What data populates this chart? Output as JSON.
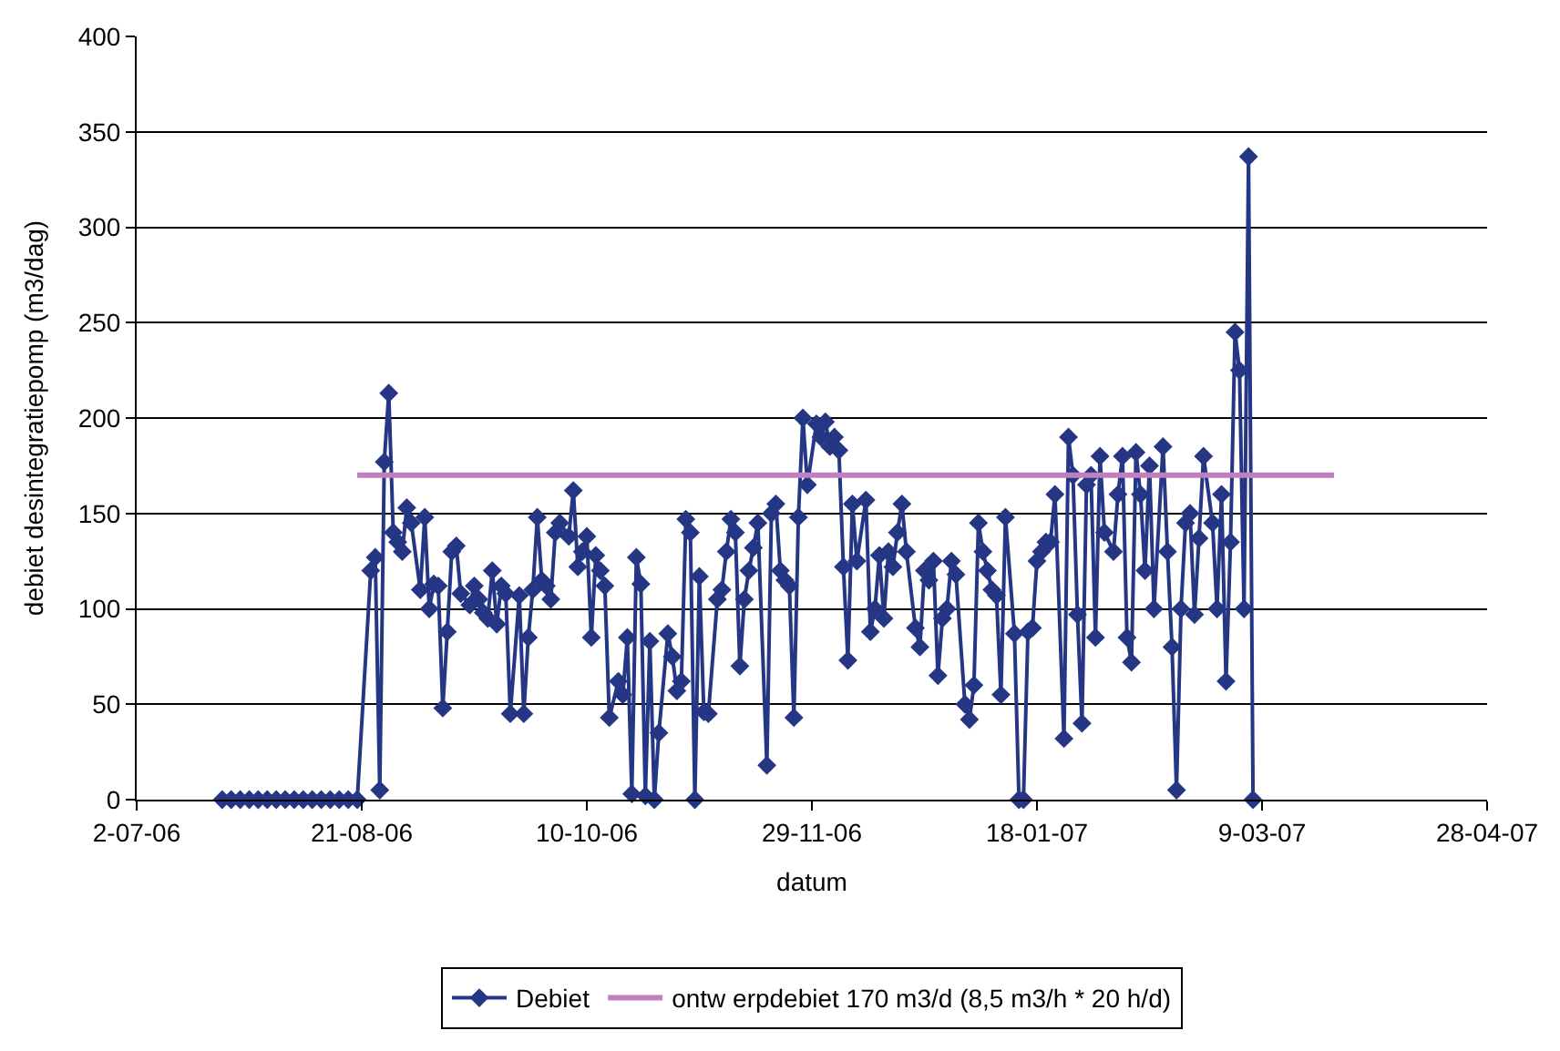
{
  "chart_data": {
    "type": "line",
    "xlabel": "datum",
    "ylabel": "debiet desintegratiepomp (m3/dag)",
    "xlim": [
      "2006-07-02",
      "2007-04-28"
    ],
    "xticks": [
      {
        "value": "2006-07-02",
        "label": "2-07-06"
      },
      {
        "value": "2006-08-21",
        "label": "21-08-06"
      },
      {
        "value": "2006-10-10",
        "label": "10-10-06"
      },
      {
        "value": "2006-11-29",
        "label": "29-11-06"
      },
      {
        "value": "2007-01-18",
        "label": "18-01-07"
      },
      {
        "value": "2007-03-09",
        "label": "9-03-07"
      },
      {
        "value": "2007-04-28",
        "label": "28-04-07"
      }
    ],
    "ylim": [
      0,
      400
    ],
    "yticks": [
      0,
      50,
      100,
      150,
      200,
      250,
      300,
      350,
      400
    ],
    "grid": "y",
    "legend": "bottom",
    "series": [
      {
        "name": "Debiet",
        "color": "#253685",
        "marker": "diamond",
        "line_style": "solid",
        "x": [
          "2006-07-21",
          "2006-07-23",
          "2006-07-25",
          "2006-07-27",
          "2006-07-29",
          "2006-07-31",
          "2006-08-02",
          "2006-08-04",
          "2006-08-06",
          "2006-08-08",
          "2006-08-10",
          "2006-08-12",
          "2006-08-14",
          "2006-08-16",
          "2006-08-18",
          "2006-08-20",
          "2006-08-23",
          "2006-08-24",
          "2006-08-25",
          "2006-08-26",
          "2006-08-27",
          "2006-08-28",
          "2006-08-29",
          "2006-08-30",
          "2006-08-31",
          "2006-09-01",
          "2006-09-03",
          "2006-09-04",
          "2006-09-05",
          "2006-09-06",
          "2006-09-07",
          "2006-09-08",
          "2006-09-09",
          "2006-09-10",
          "2006-09-11",
          "2006-09-12",
          "2006-09-14",
          "2006-09-15",
          "2006-09-16",
          "2006-09-17",
          "2006-09-18",
          "2006-09-19",
          "2006-09-20",
          "2006-09-21",
          "2006-09-22",
          "2006-09-23",
          "2006-09-25",
          "2006-09-26",
          "2006-09-27",
          "2006-09-28",
          "2006-09-29",
          "2006-09-30",
          "2006-10-01",
          "2006-10-02",
          "2006-10-03",
          "2006-10-04",
          "2006-10-06",
          "2006-10-07",
          "2006-10-08",
          "2006-10-09",
          "2006-10-10",
          "2006-10-11",
          "2006-10-12",
          "2006-10-13",
          "2006-10-14",
          "2006-10-15",
          "2006-10-17",
          "2006-10-18",
          "2006-10-19",
          "2006-10-20",
          "2006-10-21",
          "2006-10-22",
          "2006-10-23",
          "2006-10-24",
          "2006-10-25",
          "2006-10-26",
          "2006-10-28",
          "2006-10-29",
          "2006-10-30",
          "2006-10-31",
          "2006-11-01",
          "2006-11-02",
          "2006-11-03",
          "2006-11-04",
          "2006-11-05",
          "2006-11-06",
          "2006-11-08",
          "2006-11-09",
          "2006-11-10",
          "2006-11-11",
          "2006-11-12",
          "2006-11-13",
          "2006-11-14",
          "2006-11-15",
          "2006-11-16",
          "2006-11-17",
          "2006-11-19",
          "2006-11-20",
          "2006-11-21",
          "2006-11-22",
          "2006-11-23",
          "2006-11-24",
          "2006-11-25",
          "2006-11-26",
          "2006-11-27",
          "2006-11-28",
          "2006-11-30",
          "2006-12-01",
          "2006-12-02",
          "2006-12-03",
          "2006-12-04",
          "2006-12-05",
          "2006-12-06",
          "2006-12-07",
          "2006-12-08",
          "2006-12-09",
          "2006-12-11",
          "2006-12-12",
          "2006-12-13",
          "2006-12-14",
          "2006-12-15",
          "2006-12-16",
          "2006-12-17",
          "2006-12-18",
          "2006-12-19",
          "2006-12-20",
          "2006-12-22",
          "2006-12-23",
          "2006-12-24",
          "2006-12-25",
          "2006-12-26",
          "2006-12-27",
          "2006-12-28",
          "2006-12-29",
          "2006-12-30",
          "2006-12-31",
          "2007-01-02",
          "2007-01-03",
          "2007-01-04",
          "2007-01-05",
          "2007-01-06",
          "2007-01-07",
          "2007-01-08",
          "2007-01-09",
          "2007-01-10",
          "2007-01-11",
          "2007-01-13",
          "2007-01-14",
          "2007-01-15",
          "2007-01-16",
          "2007-01-17",
          "2007-01-18",
          "2007-01-19",
          "2007-01-20",
          "2007-01-21",
          "2007-01-22",
          "2007-01-24",
          "2007-01-25",
          "2007-01-26",
          "2007-01-27",
          "2007-01-28",
          "2007-01-29",
          "2007-01-30",
          "2007-01-31",
          "2007-02-01",
          "2007-02-02",
          "2007-02-04",
          "2007-02-05",
          "2007-02-06",
          "2007-02-07",
          "2007-02-08",
          "2007-02-09",
          "2007-02-10",
          "2007-02-11",
          "2007-02-12",
          "2007-02-13",
          "2007-02-15",
          "2007-02-16",
          "2007-02-17",
          "2007-02-18",
          "2007-02-19",
          "2007-02-20",
          "2007-02-21",
          "2007-02-22",
          "2007-02-23",
          "2007-02-24",
          "2007-02-26",
          "2007-02-27",
          "2007-02-28",
          "2007-03-01",
          "2007-03-02",
          "2007-03-03",
          "2007-03-04",
          "2007-03-05",
          "2007-03-06",
          "2007-03-07"
        ],
        "values": [
          0,
          0,
          0,
          0,
          0,
          0,
          0,
          0,
          0,
          0,
          0,
          0,
          0,
          0,
          0,
          0,
          120,
          127,
          5,
          177,
          213,
          140,
          135,
          130,
          153,
          145,
          110,
          148,
          100,
          113,
          112,
          48,
          88,
          130,
          133,
          108,
          102,
          112,
          105,
          98,
          95,
          120,
          92,
          112,
          108,
          45,
          107,
          45,
          85,
          110,
          148,
          115,
          112,
          105,
          140,
          145,
          138,
          162,
          122,
          130,
          138,
          85,
          128,
          120,
          112,
          43,
          62,
          55,
          85,
          3,
          127,
          113,
          2,
          83,
          0,
          35,
          87,
          75,
          57,
          62,
          147,
          140,
          0,
          117,
          46,
          45,
          105,
          110,
          130,
          147,
          140,
          70,
          105,
          120,
          132,
          145,
          18,
          150,
          155,
          120,
          115,
          112,
          43,
          148,
          200,
          165,
          197,
          190,
          198,
          185,
          190,
          183,
          122,
          73,
          155,
          125,
          157,
          88,
          100,
          128,
          95,
          130,
          122,
          140,
          155,
          130,
          90,
          80,
          120,
          115,
          125,
          65,
          95,
          100,
          125,
          118,
          50,
          42,
          60,
          145,
          130,
          120,
          110,
          107,
          55,
          148,
          87,
          0,
          0,
          88,
          90,
          125,
          130,
          135,
          135,
          160,
          32,
          190,
          170,
          97,
          40,
          165,
          170,
          85,
          180,
          140,
          130,
          160,
          180,
          85,
          72,
          182,
          160,
          120,
          175,
          100,
          185,
          130,
          80,
          5,
          100,
          145,
          150,
          97,
          137,
          180,
          145,
          100,
          160,
          62,
          135,
          245,
          225,
          100,
          337,
          0
        ]
      },
      {
        "name": "ontw erpdebiet 170 m3/d (8,5 m3/h * 20 h/d)",
        "color": "#c080c0",
        "marker": "none",
        "line_style": "solid",
        "x": [
          "2006-08-20",
          "2007-03-25"
        ],
        "values": [
          170,
          170
        ]
      }
    ]
  }
}
